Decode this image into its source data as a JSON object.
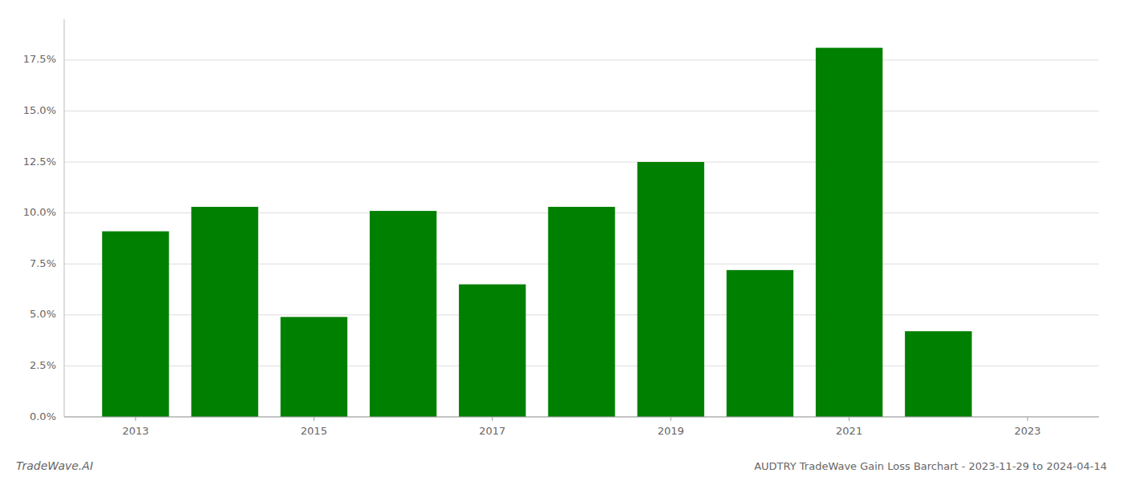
{
  "chart_data": {
    "type": "bar",
    "title": "AUDTRY TradeWave Gain Loss Barchart - 2023-11-29 to 2024-04-14",
    "annotations": [
      "TradeWave.AI"
    ],
    "x": [
      2013,
      2014,
      2015,
      2016,
      2017,
      2018,
      2019,
      2020,
      2021,
      2022
    ],
    "values": [
      0.091,
      0.103,
      0.049,
      0.101,
      0.065,
      0.103,
      0.125,
      0.072,
      0.181,
      0.042
    ],
    "color": "#008000",
    "xlim": [
      2012.2,
      2023.8
    ],
    "xticks": [
      2013,
      2015,
      2017,
      2019,
      2021,
      2023
    ],
    "ylim": [
      0,
      0.195
    ],
    "yticks": [
      {
        "value": 0.0,
        "label": "0.0%"
      },
      {
        "value": 0.025,
        "label": "2.5%"
      },
      {
        "value": 0.05,
        "label": "5.0%"
      },
      {
        "value": 0.075,
        "label": "7.5%"
      },
      {
        "value": 0.1,
        "label": "10.0%"
      },
      {
        "value": 0.125,
        "label": "12.5%"
      },
      {
        "value": 0.15,
        "label": "15.0%"
      },
      {
        "value": 0.175,
        "label": "17.5%"
      }
    ],
    "grid": true
  }
}
